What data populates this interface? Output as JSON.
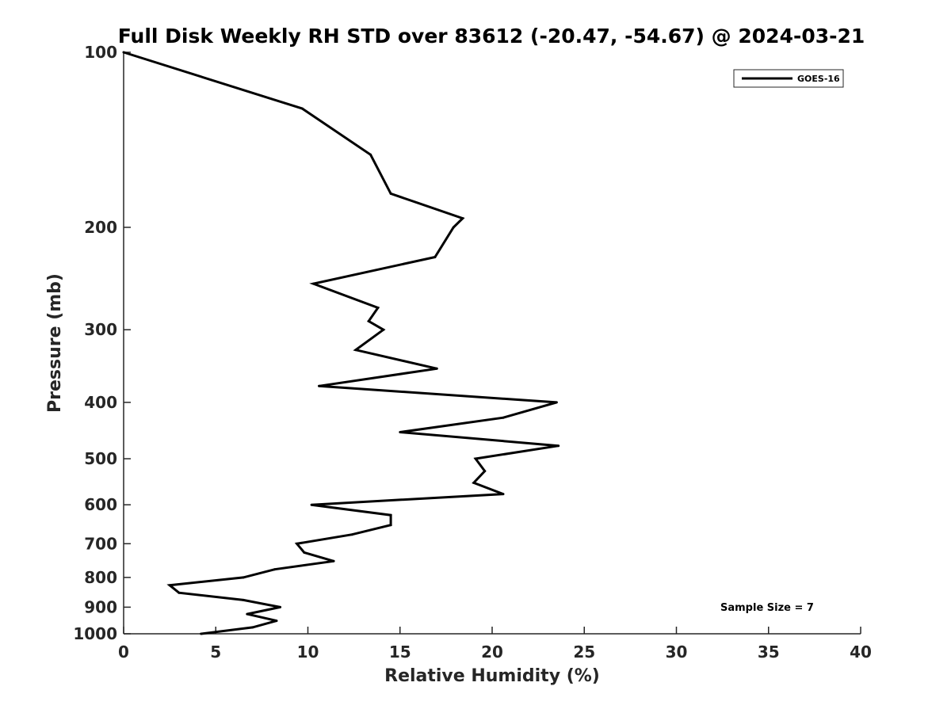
{
  "chart_data": {
    "type": "line",
    "title": "Full Disk Weekly RH STD over 83612 (-20.47, -54.67) @ 2024-03-21",
    "xlabel": "Relative Humidity (%)",
    "ylabel": "Pressure (mb)",
    "xlim": [
      0,
      40
    ],
    "ylim": [
      100,
      1000
    ],
    "y_scale": "log",
    "y_reversed": true,
    "x_ticks": [
      0,
      5,
      10,
      15,
      20,
      25,
      30,
      35,
      40
    ],
    "y_ticks": [
      100,
      200,
      300,
      400,
      500,
      600,
      700,
      800,
      900,
      1000
    ],
    "grid": false,
    "legend": {
      "position": "top-right",
      "entries": [
        "GOES-16"
      ]
    },
    "annotation": "Sample Size = 7",
    "series": [
      {
        "name": "GOES-16",
        "color": "#000000",
        "points": [
          [
            0.0,
            100
          ],
          [
            9.7,
            125
          ],
          [
            13.4,
            150
          ],
          [
            14.5,
            175
          ],
          [
            18.4,
            193
          ],
          [
            17.9,
            200
          ],
          [
            16.9,
            225
          ],
          [
            10.3,
            250
          ],
          [
            13.8,
            275
          ],
          [
            13.3,
            290
          ],
          [
            14.1,
            300
          ],
          [
            12.6,
            325
          ],
          [
            17.0,
            350
          ],
          [
            10.6,
            375
          ],
          [
            23.5,
            400
          ],
          [
            20.6,
            425
          ],
          [
            15.0,
            450
          ],
          [
            23.6,
            475
          ],
          [
            19.1,
            500
          ],
          [
            19.6,
            525
          ],
          [
            19.0,
            550
          ],
          [
            20.6,
            575
          ],
          [
            10.2,
            600
          ],
          [
            14.5,
            625
          ],
          [
            14.5,
            650
          ],
          [
            12.4,
            675
          ],
          [
            9.4,
            700
          ],
          [
            9.8,
            725
          ],
          [
            11.4,
            750
          ],
          [
            8.2,
            775
          ],
          [
            6.5,
            800
          ],
          [
            2.5,
            825
          ],
          [
            3.0,
            850
          ],
          [
            6.5,
            875
          ],
          [
            8.5,
            900
          ],
          [
            6.7,
            925
          ],
          [
            8.3,
            950
          ],
          [
            7.0,
            975
          ],
          [
            4.2,
            1000
          ]
        ]
      }
    ]
  }
}
